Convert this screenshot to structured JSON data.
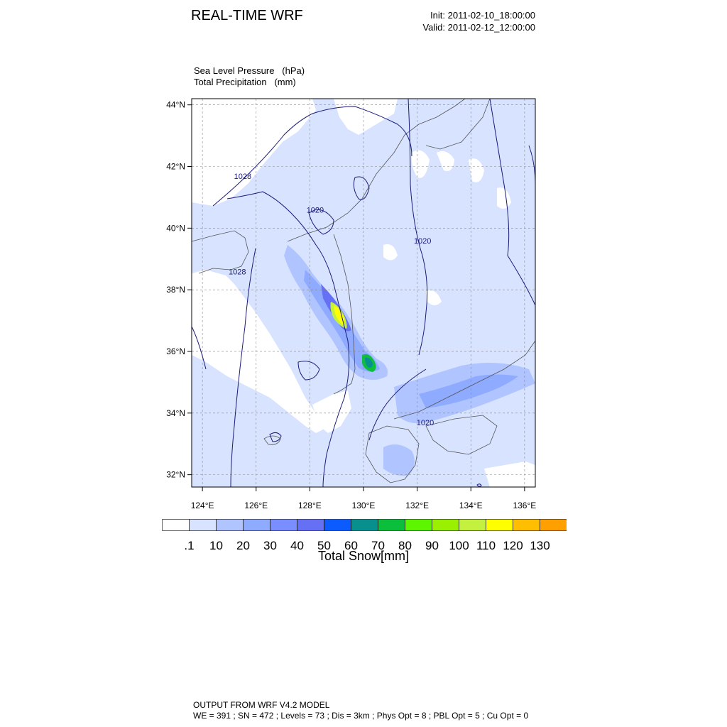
{
  "header": {
    "title": "REAL-TIME WRF",
    "init": "Init: 2011-02-10_18:00:00",
    "valid": "Valid: 2011-02-12_12:00:00"
  },
  "variables": {
    "line1": "Sea Level Pressure   (hPa)",
    "line2": "Total Precipitation   (mm)"
  },
  "map": {
    "lat_labels": [
      "44°N",
      "42°N",
      "40°N",
      "38°N",
      "36°N",
      "34°N",
      "32°N"
    ],
    "lat_values": [
      44,
      42,
      40,
      38,
      36,
      34,
      32
    ],
    "lon_labels": [
      "124°E",
      "126°E",
      "128°E",
      "130°E",
      "132°E",
      "134°E",
      "136°E"
    ],
    "lon_values": [
      124,
      126,
      128,
      130,
      132,
      134,
      136
    ],
    "lon_range": [
      123.6,
      136.4
    ],
    "lat_range": [
      31.6,
      44.2
    ],
    "isobar_labels": [
      {
        "text": "1028",
        "lon": 125.5,
        "lat": 41.6
      },
      {
        "text": "1020",
        "lon": 128.2,
        "lat": 40.5
      },
      {
        "text": "1020",
        "lon": 132.2,
        "lat": 39.5
      },
      {
        "text": "1028",
        "lon": 125.3,
        "lat": 38.5
      },
      {
        "text": "1020",
        "lon": 132.3,
        "lat": 33.6
      }
    ],
    "colors": {
      "background_precip": "#d7e3ff",
      "land_white": "#ffffff",
      "coast": "#555555",
      "isobar": "#1a1a7a",
      "grid": "#888888"
    }
  },
  "colorbar": {
    "labels": [
      ".1",
      "10",
      "20",
      "30",
      "40",
      "50",
      "60",
      "70",
      "80",
      "90",
      "100",
      "110",
      "120",
      "130"
    ],
    "colors": [
      "#ffffff",
      "#d7e3ff",
      "#b0c4ff",
      "#8eabff",
      "#7b8eff",
      "#6670f5",
      "#0b5bff",
      "#07908e",
      "#0bbf3c",
      "#5ef500",
      "#99f000",
      "#c4f040",
      "#ffff00",
      "#ffbe00",
      "#ffa000"
    ],
    "title": "Total Snow[mm]"
  },
  "footer": {
    "line1": "OUTPUT FROM WRF V4.2 MODEL",
    "line2": "WE = 391 ; SN = 472 ; Levels = 73 ; Dis = 3km ; Phys Opt = 8 ; PBL Opt = 5 ; Cu Opt = 0"
  }
}
